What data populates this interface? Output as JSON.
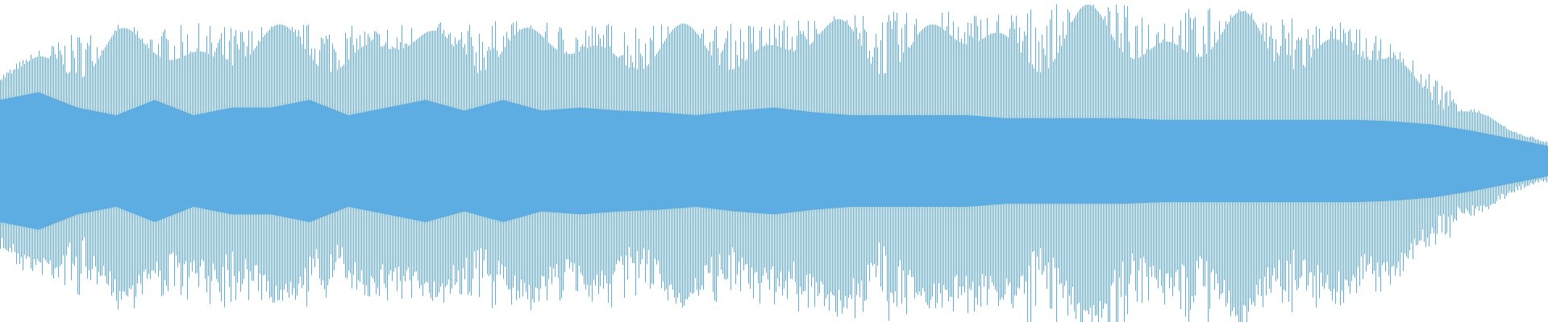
{
  "waveform": {
    "color": "#5dade2",
    "background": "#ffffff",
    "peak_envelope": [
      0.55,
      0.7,
      0.8,
      0.85,
      0.82,
      0.86,
      0.84,
      0.85,
      0.86,
      0.84,
      0.86,
      0.87,
      0.85,
      0.88,
      0.86,
      0.86,
      0.87,
      0.86,
      0.85,
      0.86,
      0.88,
      0.92,
      0.92,
      0.93,
      0.93,
      0.94,
      0.95,
      0.97,
      0.98,
      0.98,
      0.97,
      0.96,
      0.95,
      0.93,
      0.9,
      0.85,
      0.72,
      0.55,
      0.35,
      0.2,
      0.12
    ],
    "core_envelope": [
      0.4,
      0.45,
      0.35,
      0.3,
      0.4,
      0.3,
      0.35,
      0.35,
      0.4,
      0.3,
      0.35,
      0.4,
      0.33,
      0.4,
      0.33,
      0.35,
      0.33,
      0.32,
      0.3,
      0.33,
      0.35,
      0.32,
      0.3,
      0.3,
      0.3,
      0.3,
      0.28,
      0.28,
      0.28,
      0.28,
      0.27,
      0.27,
      0.27,
      0.27,
      0.27,
      0.27,
      0.26,
      0.24,
      0.2,
      0.15,
      0.1
    ]
  }
}
